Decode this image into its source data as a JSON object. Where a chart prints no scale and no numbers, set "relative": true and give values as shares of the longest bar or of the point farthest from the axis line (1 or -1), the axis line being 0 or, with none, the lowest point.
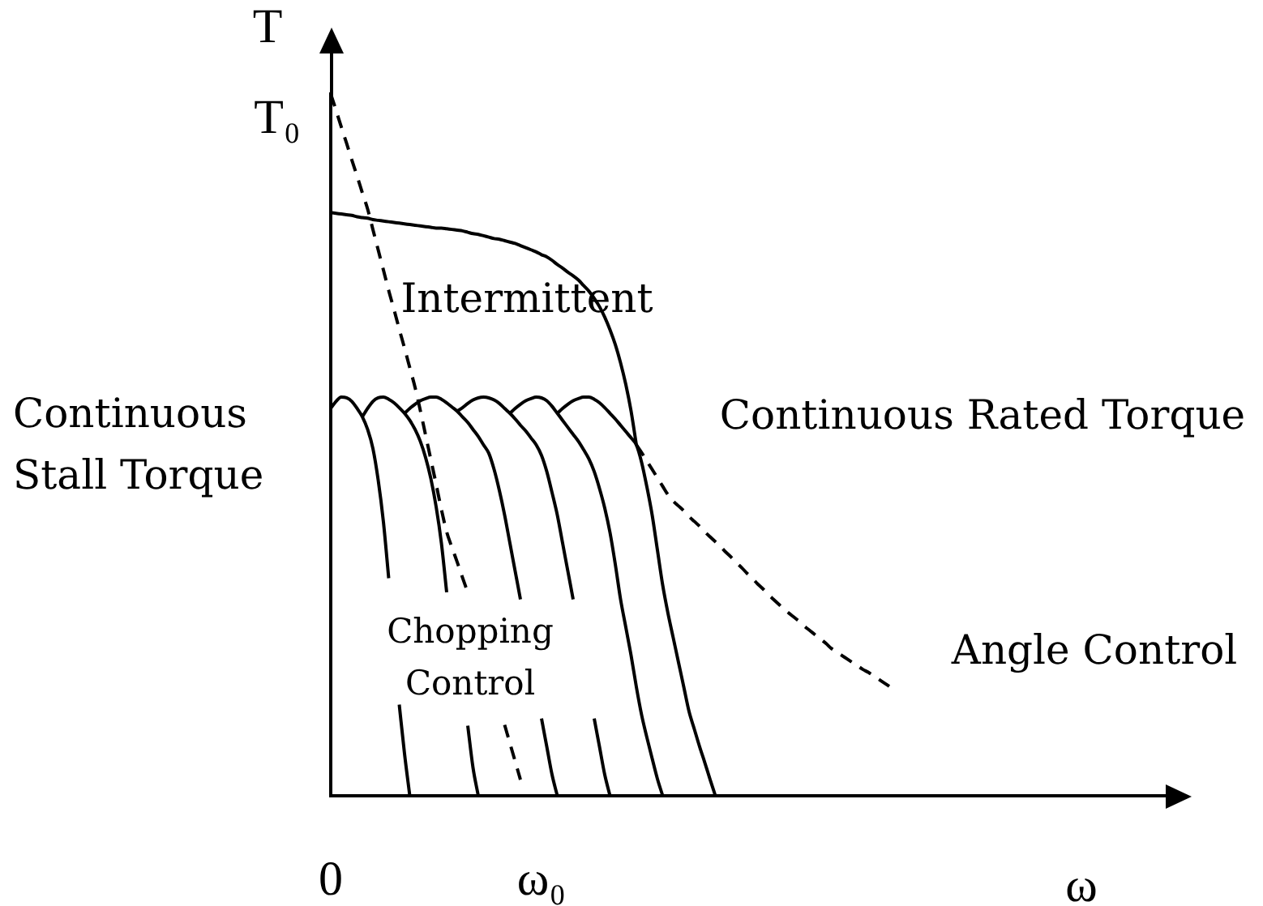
{
  "chart_data": {
    "type": "line",
    "relative": true,
    "ylabel": "T",
    "xlabel": "ω",
    "categories": [
      "0",
      null,
      null,
      null,
      null,
      null,
      null,
      null,
      null,
      null,
      null,
      null,
      null,
      null,
      null,
      null,
      null,
      null,
      null,
      null,
      null,
      null,
      null,
      null,
      null,
      null,
      null,
      null,
      null,
      null,
      null,
      null,
      null,
      null,
      null,
      null,
      null,
      null,
      null,
      null,
      "ω₀",
      null,
      null,
      null,
      null,
      null,
      null,
      null,
      null,
      null,
      null,
      null,
      null,
      null,
      null,
      null,
      null,
      null,
      null,
      null,
      null,
      null,
      null,
      null,
      null,
      null,
      null,
      null,
      null,
      null,
      null,
      null,
      null,
      null,
      null,
      null,
      null,
      null,
      null,
      null,
      null,
      null,
      null,
      null,
      null,
      null,
      null,
      null,
      null,
      null,
      null,
      null,
      null,
      null,
      null,
      null,
      null,
      null,
      null,
      null,
      null,
      null,
      null,
      null,
      null,
      null,
      null,
      null,
      null,
      null,
      null,
      null,
      null,
      null,
      null,
      null,
      null,
      null,
      null,
      null,
      null,
      null,
      null,
      null,
      null,
      null,
      null,
      null,
      null,
      null,
      null,
      null,
      null,
      null,
      null,
      null,
      null,
      null,
      null,
      null,
      null,
      null,
      null,
      null,
      null,
      null,
      null,
      null,
      null,
      null,
      null,
      null,
      null,
      null,
      null,
      null,
      null,
      null,
      null,
      null,
      null
    ],
    "series": [
      {
        "color": "#000000",
        "values": [
          0.552,
          0.562,
          0.568,
          0.567,
          0.562,
          0.552,
          0.54,
          0.522,
          0.495,
          0.45,
          0.39,
          0.31,
          null,
          0.13,
          0.06,
          0,
          null,
          null,
          null,
          null,
          null,
          null,
          null,
          null,
          null,
          null,
          null,
          null,
          null,
          null,
          null,
          null,
          null,
          null,
          null,
          null,
          null,
          null,
          null,
          null,
          null,
          null,
          null,
          null,
          null,
          null,
          null,
          null,
          null,
          null,
          null,
          null,
          null,
          null,
          null,
          null,
          null,
          null,
          null,
          null,
          null,
          null,
          null,
          null,
          null,
          null,
          null,
          null,
          null,
          null,
          null,
          null,
          null,
          null,
          null,
          null,
          null,
          null,
          null,
          null,
          null,
          null,
          null,
          null,
          null,
          null,
          null,
          null,
          null,
          null,
          null,
          null,
          null,
          null,
          null,
          null,
          null,
          null,
          null,
          null,
          null,
          null,
          null,
          null,
          null,
          null,
          null,
          null,
          null,
          null,
          null,
          null,
          null,
          null,
          null,
          null,
          null,
          null,
          null,
          null,
          null,
          null,
          null,
          null,
          null,
          null,
          null,
          null,
          null,
          null,
          null,
          null,
          null,
          null,
          null,
          null,
          null,
          null,
          null,
          null,
          null,
          null,
          null,
          null,
          null,
          null,
          null,
          null,
          null,
          null,
          null,
          null,
          null,
          null,
          null,
          null,
          null,
          null,
          null,
          null,
          null
        ]
      },
      {
        "color": "#000000",
        "values": [
          null,
          null,
          null,
          null,
          null,
          null,
          0.54,
          0.552,
          0.562,
          0.567,
          0.568,
          0.565,
          0.56,
          0.553,
          0.545,
          0.535,
          0.522,
          0.505,
          0.482,
          0.452,
          0.412,
          0.36,
          0.29,
          null,
          null,
          null,
          0.1,
          0.04,
          0,
          null,
          null,
          null,
          null,
          null,
          null,
          null,
          null,
          null,
          null,
          null,
          null,
          null,
          null,
          null,
          null,
          null,
          null,
          null,
          null,
          null,
          null,
          null,
          null,
          null,
          null,
          null,
          null,
          null,
          null,
          null,
          null,
          null,
          null,
          null,
          null,
          null,
          null,
          null,
          null,
          null,
          null,
          null,
          null,
          null,
          null,
          null,
          null,
          null,
          null,
          null,
          null,
          null,
          null,
          null,
          null,
          null,
          null,
          null,
          null,
          null,
          null,
          null,
          null,
          null,
          null,
          null,
          null,
          null,
          null,
          null,
          null,
          null,
          null,
          null,
          null,
          null,
          null,
          null,
          null,
          null,
          null,
          null,
          null,
          null,
          null,
          null,
          null,
          null,
          null,
          null,
          null,
          null,
          null,
          null,
          null,
          null,
          null,
          null,
          null,
          null,
          null,
          null,
          null,
          null,
          null,
          null,
          null,
          null,
          null,
          null,
          null,
          null,
          null,
          null,
          null,
          null,
          null,
          null,
          null,
          null,
          null,
          null,
          null,
          null,
          null,
          null,
          null,
          null,
          null,
          null,
          null
        ]
      },
      {
        "color": "#000000",
        "values": [
          null,
          null,
          null,
          null,
          null,
          null,
          null,
          null,
          null,
          null,
          null,
          null,
          null,
          null,
          0.545,
          0.552,
          0.558,
          0.563,
          0.566,
          0.568,
          0.568,
          0.565,
          0.56,
          0.554,
          0.548,
          0.54,
          0.532,
          0.522,
          0.512,
          0.5,
          0.488,
          0.465,
          0.435,
          0.4,
          0.36,
          0.32,
          0.28,
          null,
          null,
          null,
          0.11,
          0.07,
          0.03,
          0,
          null,
          null,
          null,
          null,
          null,
          null,
          null,
          null,
          null,
          null,
          null,
          null,
          null,
          null,
          null,
          null,
          null,
          null,
          null,
          null,
          null,
          null,
          null,
          null,
          null,
          null,
          null,
          null,
          null,
          null,
          null,
          null,
          null,
          null,
          null,
          null,
          null,
          null,
          null,
          null,
          null,
          null,
          null,
          null,
          null,
          null,
          null,
          null,
          null,
          null,
          null,
          null,
          null,
          null,
          null,
          null,
          null,
          null,
          null,
          null,
          null,
          null,
          null,
          null,
          null,
          null,
          null,
          null,
          null,
          null,
          null,
          null,
          null,
          null,
          null,
          null,
          null,
          null,
          null,
          null,
          null,
          null,
          null,
          null,
          null,
          null,
          null,
          null,
          null,
          null,
          null,
          null,
          null,
          null,
          null,
          null,
          null,
          null,
          null,
          null,
          null,
          null,
          null,
          null,
          null,
          null,
          null,
          null,
          null,
          null,
          null,
          null,
          null,
          null,
          null,
          null,
          null
        ]
      },
      {
        "color": "#000000",
        "values": [
          null,
          null,
          null,
          null,
          null,
          null,
          null,
          null,
          null,
          null,
          null,
          null,
          null,
          null,
          null,
          null,
          null,
          null,
          null,
          null,
          null,
          null,
          null,
          null,
          0.548,
          0.553,
          0.559,
          0.564,
          0.567,
          0.568,
          0.567,
          0.564,
          0.559,
          0.552,
          0.545,
          0.537,
          0.528,
          0.52,
          0.51,
          0.5,
          0.485,
          0.462,
          0.432,
          0.4,
          0.36,
          0.32,
          0.28,
          null,
          null,
          null,
          0.11,
          0.07,
          0.03,
          0,
          null,
          null,
          null,
          null,
          null,
          null,
          null,
          null,
          null,
          null,
          null,
          null,
          null,
          null,
          null,
          null,
          null,
          null,
          null,
          null,
          null,
          null,
          null,
          null,
          null,
          null,
          null,
          null,
          null,
          null,
          null,
          null,
          null,
          null,
          null,
          null,
          null,
          null,
          null,
          null,
          null,
          null,
          null,
          null,
          null,
          null,
          null,
          null,
          null,
          null,
          null,
          null,
          null,
          null,
          null,
          null,
          null,
          null,
          null,
          null,
          null,
          null,
          null,
          null,
          null,
          null,
          null,
          null,
          null,
          null,
          null,
          null,
          null,
          null,
          null,
          null,
          null,
          null,
          null,
          null,
          null,
          null,
          null,
          null,
          null,
          null,
          null,
          null,
          null,
          null,
          null,
          null,
          null,
          null,
          null,
          null,
          null,
          null,
          null,
          null,
          null,
          null,
          null,
          null,
          null,
          null,
          null
        ]
      },
      {
        "color": "#000000",
        "values": [
          null,
          null,
          null,
          null,
          null,
          null,
          null,
          null,
          null,
          null,
          null,
          null,
          null,
          null,
          null,
          null,
          null,
          null,
          null,
          null,
          null,
          null,
          null,
          null,
          null,
          null,
          null,
          null,
          null,
          null,
          null,
          null,
          null,
          null,
          0.545,
          0.552,
          0.558,
          0.563,
          0.566,
          0.568,
          0.567,
          0.563,
          0.555,
          0.545,
          0.535,
          0.525,
          0.515,
          0.505,
          0.493,
          0.48,
          0.462,
          0.438,
          0.41,
          0.375,
          0.33,
          0.28,
          0.24,
          0.2,
          0.155,
          0.115,
          0.083,
          0.053,
          0.024,
          0,
          null,
          null,
          null,
          null,
          null,
          null,
          null,
          null,
          null,
          null,
          null,
          null,
          null,
          null,
          null,
          null,
          null,
          null,
          null,
          null,
          null,
          null,
          null,
          null,
          null,
          null,
          null,
          null,
          null,
          null,
          null,
          null,
          null,
          null,
          null,
          null,
          null,
          null,
          null,
          null,
          null,
          null,
          null,
          null,
          null,
          null,
          null,
          null,
          null,
          null,
          null,
          null,
          null,
          null,
          null,
          null,
          null,
          null,
          null,
          null,
          null,
          null,
          null,
          null,
          null,
          null,
          null,
          null,
          null,
          null,
          null,
          null,
          null,
          null,
          null,
          null,
          null,
          null,
          null,
          null,
          null,
          null,
          null,
          null,
          null,
          null,
          null,
          null,
          null,
          null,
          null,
          null,
          null,
          null,
          null,
          null,
          null
        ]
      },
      {
        "color": "#000000",
        "values": [
          null,
          null,
          null,
          null,
          null,
          null,
          null,
          null,
          null,
          null,
          null,
          null,
          null,
          null,
          null,
          null,
          null,
          null,
          null,
          null,
          null,
          null,
          null,
          null,
          null,
          null,
          null,
          null,
          null,
          null,
          null,
          null,
          null,
          null,
          null,
          null,
          null,
          null,
          null,
          null,
          null,
          null,
          null,
          0.545,
          0.552,
          0.558,
          0.563,
          0.566,
          0.568,
          0.568,
          0.565,
          0.56,
          0.553,
          0.545,
          0.537,
          0.528,
          0.519,
          0.51,
          0.5,
          0.475,
          0.44,
          0.4,
          0.35,
          0.3,
          0.26,
          0.225,
          0.19,
          0.155,
          0.12,
          0.095,
          0.07,
          0.047,
          0.023,
          0,
          null,
          null,
          null,
          null,
          null,
          null,
          null,
          null,
          null,
          null,
          null,
          null,
          null,
          null,
          null,
          null,
          null,
          null,
          null,
          null,
          null,
          null,
          null,
          null,
          null,
          null,
          null,
          null,
          null,
          null,
          null,
          null,
          null,
          null,
          null,
          null,
          null,
          null,
          null,
          null,
          null,
          null,
          null,
          null,
          null,
          null,
          null,
          null,
          null,
          null,
          null,
          null,
          null,
          null,
          null,
          null,
          null,
          null,
          null,
          null,
          null,
          null,
          null,
          null,
          null,
          null,
          null,
          null,
          null,
          null,
          null,
          null,
          null,
          null,
          null,
          null,
          null,
          null,
          null,
          null,
          null,
          null,
          null,
          null,
          null,
          null,
          null
        ]
      },
      {
        "color": "#000000",
        "values": [
          0.831,
          0.83,
          0.829,
          0.828,
          0.827,
          0.825,
          0.824,
          0.823,
          0.821,
          0.82,
          0.819,
          0.818,
          0.817,
          0.816,
          0.815,
          0.814,
          0.813,
          0.812,
          0.811,
          0.81,
          0.809,
          0.809,
          0.808,
          0.807,
          0.806,
          0.805,
          0.803,
          0.801,
          0.8,
          0.798,
          0.796,
          0.794,
          0.793,
          0.791,
          0.789,
          0.787,
          0.784,
          0.781,
          0.778,
          0.775,
          0.771,
          0.768,
          0.763,
          0.757,
          0.752,
          0.746,
          0.741,
          0.735,
          0.727,
          0.719,
          0.709,
          0.697,
          0.682,
          0.664,
          0.643,
          0.617,
          0.586,
          0.548,
          0.5,
          null,
          null,
          null,
          null,
          null,
          null,
          null,
          null,
          null,
          null,
          null,
          null,
          null,
          null,
          null,
          null,
          null,
          null,
          null,
          null,
          null,
          null,
          null,
          null,
          null,
          null,
          null,
          null,
          null,
          null,
          null,
          null,
          null,
          null,
          null,
          null,
          null,
          null,
          null,
          null,
          null,
          null,
          null,
          null,
          null,
          null,
          null,
          null,
          null,
          null,
          null,
          null,
          null,
          null,
          null,
          null,
          null,
          null,
          null,
          null,
          null,
          null,
          null,
          null,
          null,
          null,
          null,
          null,
          null,
          null,
          null,
          null,
          null,
          null,
          null,
          null,
          null,
          null,
          null,
          null,
          null,
          null,
          null,
          null,
          null,
          null,
          null,
          null,
          null,
          null,
          null,
          null,
          null,
          null,
          null,
          null,
          null,
          null,
          null,
          null,
          null,
          null
        ]
      },
      {
        "color": "#000000",
        "line_style": "dashed",
        "values": [
          1,
          0.977,
          0.953,
          0.93,
          0.906,
          0.883,
          0.859,
          0.836,
          0.807,
          0.778,
          0.749,
          0.72,
          0.693,
          0.665,
          0.638,
          0.61,
          0.582,
          0.549,
          0.514,
          0.479,
          0.444,
          0.408,
          0.376,
          0.354,
          0.333,
          0.311,
          0.29,
          null,
          null,
          null,
          null,
          null,
          null,
          0.101,
          0.075,
          0.049,
          0.023,
          null,
          null,
          null,
          null,
          null,
          null,
          null,
          null,
          null,
          null,
          null,
          null,
          null,
          null,
          null,
          null,
          null,
          null,
          null,
          null,
          null,
          null,
          null,
          null,
          null,
          null,
          null,
          null,
          null,
          null,
          null,
          null,
          null,
          null,
          null,
          null,
          null,
          null,
          null,
          null,
          null,
          null,
          null,
          null,
          null,
          null,
          null,
          null,
          null,
          null,
          null,
          null,
          null,
          null,
          null,
          null,
          null,
          null,
          null,
          null,
          null,
          null,
          null,
          null,
          null,
          null,
          null,
          null,
          null,
          null,
          null,
          null,
          null,
          null,
          null,
          null,
          null,
          null,
          null,
          null,
          null,
          null,
          null,
          null,
          null,
          null,
          null,
          null,
          null,
          null,
          null,
          null,
          null,
          null,
          null,
          null,
          null,
          null,
          null,
          null,
          null,
          null,
          null,
          null,
          null,
          null,
          null,
          null,
          null,
          null,
          null,
          null,
          null,
          null,
          null,
          null,
          null,
          null,
          null,
          null,
          null,
          null,
          null,
          null
        ]
      },
      {
        "color": "#000000",
        "line_style": "dashed",
        "values": [
          null,
          null,
          null,
          null,
          null,
          null,
          null,
          null,
          null,
          null,
          null,
          null,
          null,
          null,
          null,
          null,
          null,
          null,
          null,
          null,
          null,
          null,
          null,
          null,
          null,
          null,
          null,
          null,
          null,
          null,
          null,
          null,
          null,
          null,
          null,
          null,
          null,
          null,
          null,
          null,
          null,
          null,
          null,
          null,
          null,
          null,
          null,
          null,
          null,
          null,
          null,
          null,
          null,
          null,
          null,
          null,
          null,
          null,
          0.5,
          0.489,
          0.477,
          0.465,
          0.453,
          0.441,
          0.429,
          0.42,
          0.413,
          0.406,
          0.398,
          0.391,
          0.384,
          0.376,
          0.369,
          0.362,
          0.355,
          0.347,
          0.34,
          0.332,
          0.325,
          0.317,
          0.31,
          0.302,
          0.295,
          0.287,
          0.28,
          0.273,
          0.266,
          0.26,
          0.254,
          0.248,
          0.241,
          0.235,
          0.229,
          0.223,
          0.217,
          0.21,
          0.205,
          0.2,
          0.195,
          0.19,
          0.185,
          0.18,
          0.176,
          0.171,
          0.166,
          0.161,
          0.156,
          null,
          null,
          null,
          null,
          null,
          null,
          null,
          null,
          null,
          null,
          null,
          null,
          null,
          null,
          null,
          null,
          null,
          null,
          null,
          null,
          null,
          null,
          null,
          null,
          null,
          null,
          null,
          null,
          null,
          null,
          null,
          null,
          null,
          null,
          null,
          null,
          null,
          null,
          null,
          null,
          null,
          null,
          null,
          null,
          null,
          null,
          null,
          null,
          null,
          null,
          null,
          null,
          null,
          null
        ]
      }
    ],
    "annotations": [
      "T₀",
      "Intermittent",
      "Continuous Stall Torque",
      "Continuous Rated Torque",
      "Chopping Control",
      "Angle Control"
    ]
  }
}
